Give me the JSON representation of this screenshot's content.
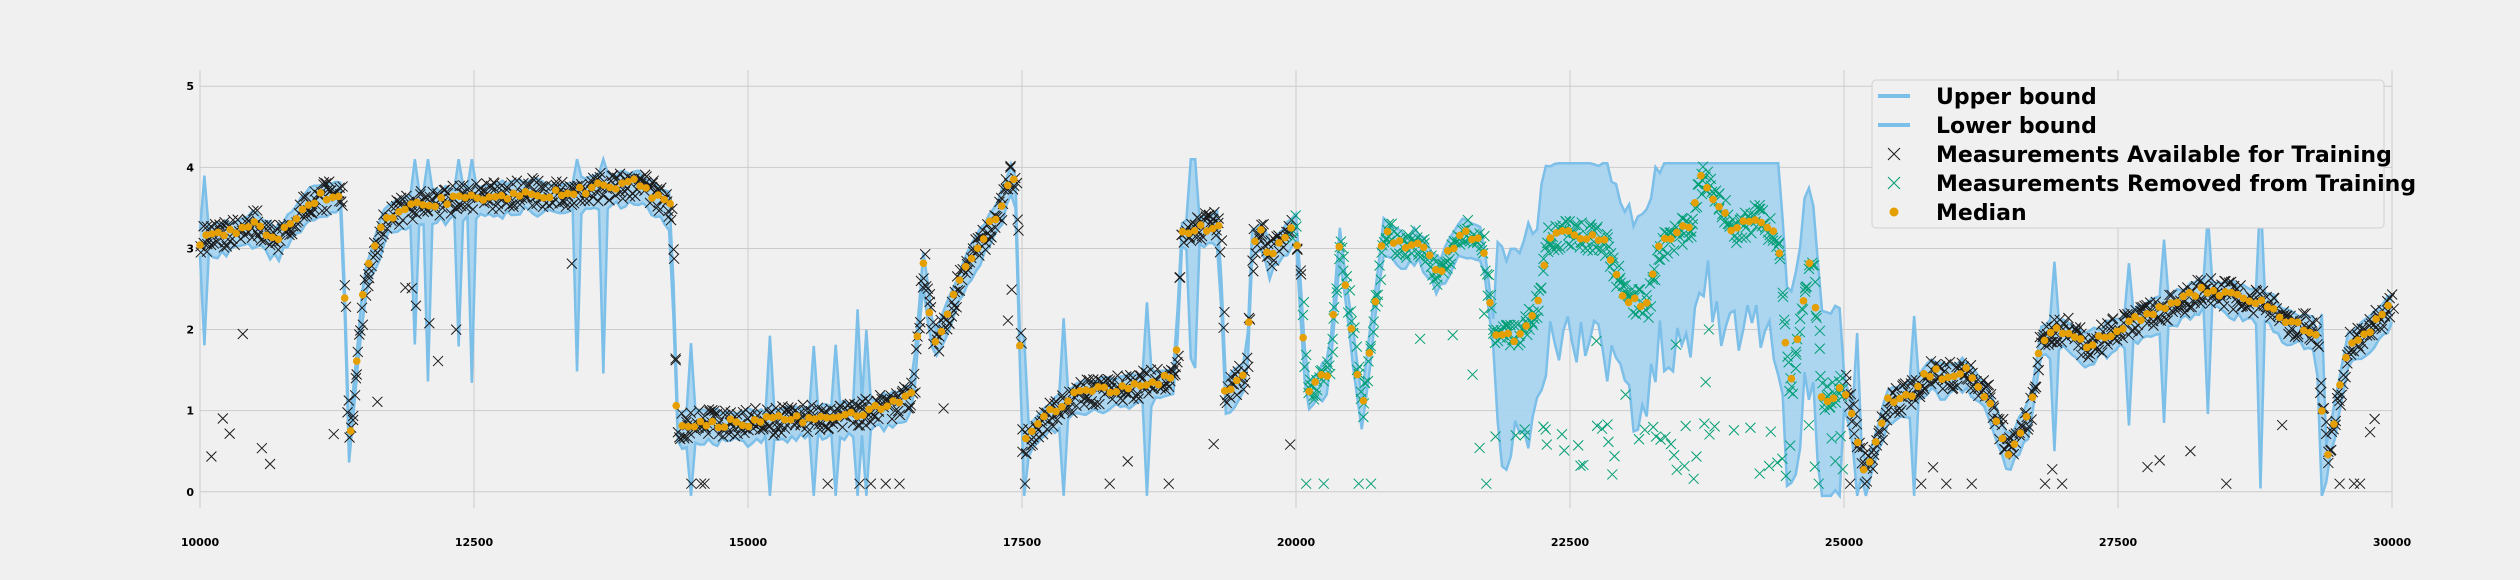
{
  "chart_data": {
    "type": "scatter",
    "title": "",
    "xlabel": "",
    "ylabel": "",
    "xlim": [
      10000,
      30000
    ],
    "ylim": [
      -0.2,
      5.2
    ],
    "grid": true,
    "legend_position": "top-right",
    "xticks": [
      10000,
      12500,
      15000,
      17500,
      20000,
      22500,
      25000,
      27500,
      30000
    ],
    "xtick_labels": [
      "10000",
      "12500",
      "15000",
      "17500",
      "20000",
      "22500",
      "25000",
      "27500",
      "30000"
    ],
    "yticks": [
      0,
      1,
      2,
      3,
      4,
      5
    ],
    "ytick_labels": [
      "0",
      "1",
      "2",
      "3",
      "4",
      "5"
    ],
    "colors": {
      "bound": "#7cbfe8",
      "bound_fill": "#a8d3ef",
      "available": "#1a1a1a",
      "removed": "#009e73",
      "median": "#e69f00",
      "grid": "#cbcbcb"
    },
    "series": [
      {
        "name": "Upper bound",
        "marker": "line"
      },
      {
        "name": "Lower bound",
        "marker": "line"
      },
      {
        "name": "Measurements Available for Training",
        "marker": "x"
      },
      {
        "name": "Measurements Removed from Training",
        "marker": "x"
      },
      {
        "name": "Median",
        "marker": "dot"
      }
    ],
    "median_profile": {
      "x": [
        10000,
        10300,
        10500,
        10700,
        11000,
        11300,
        11350,
        11500,
        11700,
        12000,
        12300,
        12700,
        13000,
        13300,
        13600,
        14000,
        14300,
        14350,
        14500,
        15000,
        15500,
        16000,
        16400,
        16500,
        16600,
        16700,
        17000,
        17300,
        17400,
        17450,
        17500,
        17700,
        18000,
        18500,
        18900,
        18950,
        19300,
        19350,
        19550,
        19600,
        19700,
        19750,
        20000,
        20100,
        20300,
        20400,
        20600,
        20800,
        21000,
        21100,
        21300,
        21500,
        21700,
        21800,
        22000,
        22200,
        22300,
        22500,
        22800,
        23000,
        23200,
        23300,
        23600,
        23700,
        24000,
        24200,
        24400,
        24500,
        24700,
        24800,
        25000,
        25200,
        25400,
        25600,
        25800,
        25900,
        26100,
        26300,
        26500,
        26700,
        26800,
        27000,
        27200,
        27500,
        27800,
        28000,
        28300,
        28600,
        28900,
        29000,
        29300,
        29400,
        29600,
        29800,
        30000
      ],
      "y": [
        3.1,
        3.2,
        3.3,
        3.1,
        3.6,
        3.7,
        0.45,
        2.6,
        3.4,
        3.55,
        3.6,
        3.65,
        3.7,
        3.65,
        3.75,
        3.8,
        3.5,
        0.8,
        0.85,
        0.85,
        0.9,
        0.95,
        1.1,
        1.2,
        2.8,
        1.8,
        2.8,
        3.5,
        3.9,
        3.7,
        0.6,
        0.9,
        1.2,
        1.3,
        1.4,
        3.2,
        3.3,
        1.2,
        1.5,
        3.1,
        3.2,
        2.9,
        3.3,
        1.2,
        1.5,
        3.1,
        1.0,
        3.2,
        3.0,
        3.1,
        2.7,
        3.2,
        3.1,
        2.0,
        1.9,
        2.3,
        3.1,
        3.2,
        3.1,
        2.4,
        2.3,
        3.0,
        3.3,
        3.9,
        3.2,
        3.4,
        3.1,
        1.2,
        3.0,
        1.1,
        1.3,
        0.2,
        1.1,
        1.2,
        1.5,
        1.4,
        1.5,
        1.2,
        0.5,
        1.0,
        1.9,
        2.0,
        1.8,
        2.0,
        2.2,
        2.3,
        2.5,
        2.4,
        2.3,
        2.1,
        2.0,
        0.4,
        1.8,
        2.0,
        2.3
      ]
    }
  }
}
